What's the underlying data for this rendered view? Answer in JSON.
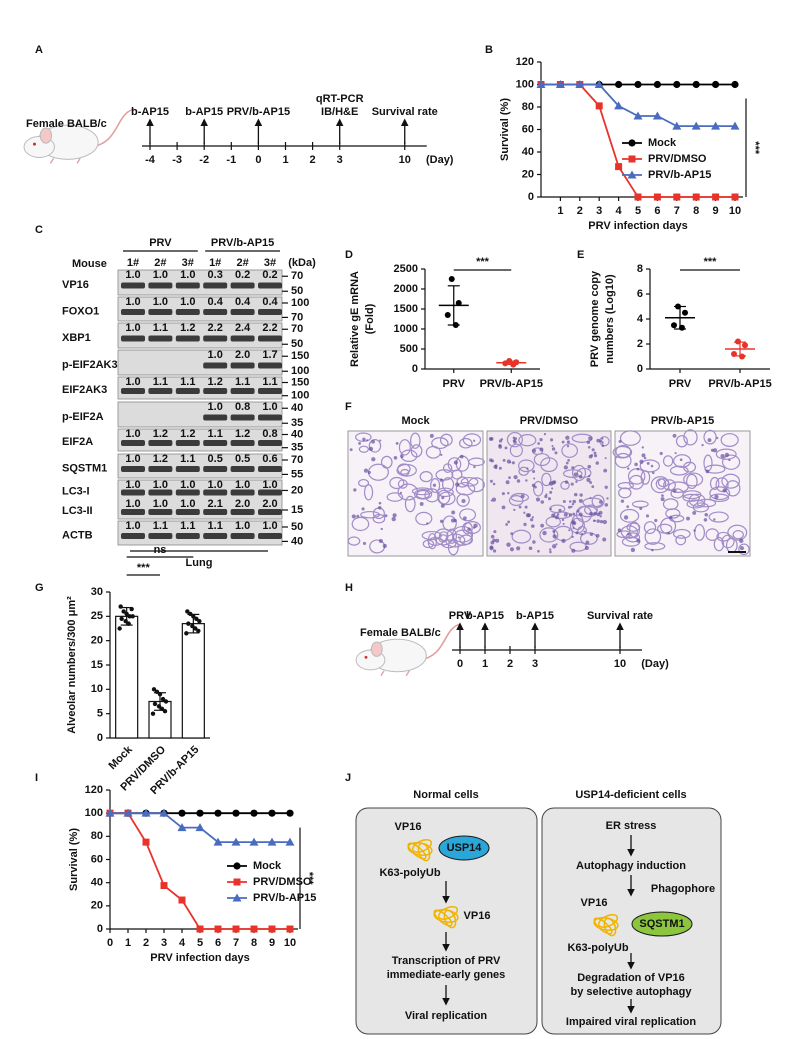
{
  "chart_data": [
    {
      "panel": "B",
      "type": "line",
      "x": [
        0,
        1,
        2,
        3,
        4,
        5,
        6,
        7,
        8,
        9,
        10
      ],
      "xlim": [
        0,
        10
      ],
      "xticks": [
        1,
        2,
        3,
        4,
        5,
        6,
        7,
        8,
        9,
        10
      ],
      "ylim": [
        0,
        120
      ],
      "yticks": [
        0,
        20,
        40,
        60,
        80,
        100,
        120
      ],
      "xlabel": "PRV infection days",
      "ylabel": "Survival (%)",
      "legend": "right",
      "significance": "***",
      "series": [
        {
          "name": "Mock",
          "color": "#000000",
          "marker": "circle",
          "values": [
            100,
            100,
            100,
            100,
            100,
            100,
            100,
            100,
            100,
            100,
            100
          ]
        },
        {
          "name": "PRV/DMSO",
          "color": "#e8332a",
          "marker": "square",
          "values": [
            100,
            100,
            100,
            81,
            27,
            0,
            0,
            0,
            0,
            0,
            0
          ]
        },
        {
          "name": "PRV/b-AP15",
          "color": "#4a6cc0",
          "marker": "triangle",
          "values": [
            100,
            100,
            100,
            100,
            81,
            72,
            72,
            63,
            63,
            63,
            63
          ]
        }
      ]
    },
    {
      "panel": "D",
      "type": "dotplot",
      "categories": [
        "PRV",
        "PRV/b-AP15"
      ],
      "ylabel": [
        "Relative gE mRNA",
        "(Fold)"
      ],
      "ylim": [
        0,
        2500
      ],
      "yticks": [
        0,
        500,
        1000,
        1500,
        2000,
        2500
      ],
      "colors": [
        "#000000",
        "#e8332a"
      ],
      "points": [
        [
          2250,
          1650,
          1350,
          1100
        ],
        [
          200,
          170,
          140,
          110
        ]
      ],
      "mean": [
        1590,
        155
      ],
      "sd": [
        490,
        40
      ],
      "significance": "***"
    },
    {
      "panel": "E",
      "type": "dotplot",
      "categories": [
        "PRV",
        "PRV/b-AP15"
      ],
      "ylabel": [
        "PRV genome copy",
        "numbers (Log10)"
      ],
      "ylim": [
        0,
        8
      ],
      "yticks": [
        0,
        2,
        4,
        6,
        8
      ],
      "colors": [
        "#000000",
        "#e8332a"
      ],
      "points": [
        [
          5.0,
          4.5,
          3.5,
          3.3
        ],
        [
          2.2,
          1.9,
          1.2,
          1.0
        ]
      ],
      "mean": [
        4.1,
        1.6
      ],
      "sd": [
        0.9,
        0.55
      ],
      "significance": "***"
    },
    {
      "panel": "G",
      "type": "bar",
      "categories": [
        "Mock",
        "PRV/DMSO",
        "PRV/b-AP15"
      ],
      "ylabel": "Alveolar numbers/300 μm²",
      "ylim": [
        0,
        30
      ],
      "yticks": [
        0,
        5,
        10,
        15,
        20,
        25,
        30
      ],
      "color": "#ffffff",
      "values": [
        25,
        7.5,
        23.5
      ],
      "sd": [
        1.8,
        1.8,
        1.9
      ],
      "points": [
        [
          27,
          26,
          25.5,
          25,
          25,
          24.5,
          24,
          23.5,
          26.5,
          22.5
        ],
        [
          10,
          9.5,
          9,
          8,
          7.5,
          7,
          6.5,
          6,
          5.5,
          5
        ],
        [
          26,
          25.5,
          25,
          24.5,
          24,
          23.5,
          23,
          22.5,
          22,
          21.5
        ]
      ],
      "significance": [
        "***",
        "ns"
      ]
    },
    {
      "panel": "I",
      "type": "line",
      "x": [
        0,
        1,
        2,
        3,
        4,
        5,
        6,
        7,
        8,
        9,
        10
      ],
      "xlim": [
        0,
        10
      ],
      "xticks": [
        0,
        1,
        2,
        3,
        4,
        5,
        6,
        7,
        8,
        9,
        10
      ],
      "ylim": [
        0,
        120
      ],
      "yticks": [
        0,
        20,
        40,
        60,
        80,
        100,
        120
      ],
      "xlabel": "PRV infection days",
      "ylabel": "Survival (%)",
      "legend": "right",
      "significance": "***",
      "series": [
        {
          "name": "Mock",
          "color": "#000000",
          "marker": "circle",
          "values": [
            100,
            100,
            100,
            100,
            100,
            100,
            100,
            100,
            100,
            100,
            100
          ]
        },
        {
          "name": "PRV/DMSO",
          "color": "#e8332a",
          "marker": "square",
          "values": [
            100,
            100,
            75,
            37.5,
            25,
            0,
            0,
            0,
            0,
            0,
            0
          ]
        },
        {
          "name": "PRV/b-AP15",
          "color": "#4a6cc0",
          "marker": "triangle",
          "values": [
            100,
            100,
            100,
            100,
            87.5,
            87.5,
            75,
            75,
            75,
            75,
            75
          ]
        }
      ]
    }
  ],
  "timeline_a": {
    "panel": "A",
    "subject": "Female BALB/c",
    "days": [
      -4,
      -3,
      -2,
      -1,
      0,
      1,
      2,
      3,
      10
    ],
    "unit": "(Day)",
    "events": [
      {
        "day": -4,
        "labels": [
          "b-AP15"
        ]
      },
      {
        "day": -2,
        "labels": [
          "b-AP15"
        ]
      },
      {
        "day": 0,
        "labels": [
          "PRV/b-AP15"
        ]
      },
      {
        "day": 3,
        "labels": [
          "qRT-PCR",
          "IB/H&E"
        ]
      },
      {
        "day": 10,
        "labels": [
          "Survival rate"
        ]
      }
    ]
  },
  "blot": {
    "panel": "C",
    "groups": [
      "PRV",
      "PRV/b-AP15"
    ],
    "lane_header": "Mouse",
    "lanes": [
      "1#",
      "2#",
      "3#",
      "1#",
      "2#",
      "3#"
    ],
    "unit": "(kDa)",
    "tissue": "Lung",
    "rows": [
      {
        "name": "VP16",
        "quant": [
          "1.0",
          "1.0",
          "1.0",
          "0.3",
          "0.2",
          "0.2"
        ],
        "markers": [
          70,
          50
        ]
      },
      {
        "name": "FOXO1",
        "quant": [
          "1.0",
          "1.0",
          "1.0",
          "0.4",
          "0.4",
          "0.4"
        ],
        "markers": [
          100,
          70
        ]
      },
      {
        "name": "XBP1",
        "quant": [
          "1.0",
          "1.1",
          "1.2",
          "2.2",
          "2.4",
          "2.2"
        ],
        "markers": [
          70,
          50
        ]
      },
      {
        "name": "p-EIF2AK3",
        "quant": [
          null,
          null,
          null,
          "1.0",
          "2.0",
          "1.7"
        ],
        "markers": [
          150,
          100
        ]
      },
      {
        "name": "EIF2AK3",
        "quant": [
          "1.0",
          "1.1",
          "1.1",
          "1.2",
          "1.1",
          "1.1"
        ],
        "markers": [
          150,
          100
        ]
      },
      {
        "name": "p-EIF2A",
        "quant": [
          null,
          null,
          null,
          "1.0",
          "0.8",
          "1.0"
        ],
        "markers": [
          40,
          35
        ]
      },
      {
        "name": "EIF2A",
        "quant": [
          "1.0",
          "1.2",
          "1.2",
          "1.1",
          "1.2",
          "0.8"
        ],
        "markers": [
          40,
          35
        ]
      },
      {
        "name": "SQSTM1",
        "quant": [
          "1.0",
          "1.2",
          "1.1",
          "0.5",
          "0.5",
          "0.6"
        ],
        "markers": [
          70,
          55
        ]
      },
      {
        "name": "LC3-I",
        "quant": [
          "1.0",
          "1.0",
          "1.0",
          "1.0",
          "1.0",
          "1.0"
        ],
        "markers": [
          20
        ]
      },
      {
        "name": "LC3-II",
        "quant": [
          "1.0",
          "1.0",
          "1.0",
          "2.1",
          "2.0",
          "2.0"
        ],
        "markers": [
          15
        ]
      },
      {
        "name": "ACTB",
        "quant": [
          "1.0",
          "1.1",
          "1.1",
          "1.1",
          "1.0",
          "1.0"
        ],
        "markers": [
          50,
          40
        ]
      }
    ]
  },
  "histology": {
    "panel": "F",
    "titles": [
      "Mock",
      "PRV/DMSO",
      "PRV/b-AP15"
    ]
  },
  "timeline_h": {
    "panel": "H",
    "subject": "Female BALB/c",
    "days": [
      0,
      1,
      2,
      3,
      10
    ],
    "unit": "(Day)",
    "events": [
      {
        "day": 0,
        "labels": [
          "PRV"
        ]
      },
      {
        "day": 1,
        "labels": [
          "b-AP15"
        ]
      },
      {
        "day": 3,
        "labels": [
          "b-AP15"
        ]
      },
      {
        "day": 10,
        "labels": [
          "Survival rate"
        ]
      }
    ]
  },
  "diagram": {
    "panel": "J",
    "left": {
      "title": "Normal cells",
      "protein": "VP16",
      "enzyme": "USP14",
      "chain": "K63-polyUb",
      "product": "VP16",
      "step": [
        "Transcription of PRV",
        "immediate-early genes"
      ],
      "outcome": "Viral replication"
    },
    "right": {
      "title": "USP14-deficient cells",
      "trigger": "ER stress",
      "process": "Autophagy induction",
      "membrane": "Phagophore",
      "protein": "VP16",
      "receptor": "SQSTM1",
      "chain": "K63-polyUb",
      "step": [
        "Degradation of VP16",
        "by selective autophagy"
      ],
      "outcome": "Impaired viral replication"
    }
  }
}
